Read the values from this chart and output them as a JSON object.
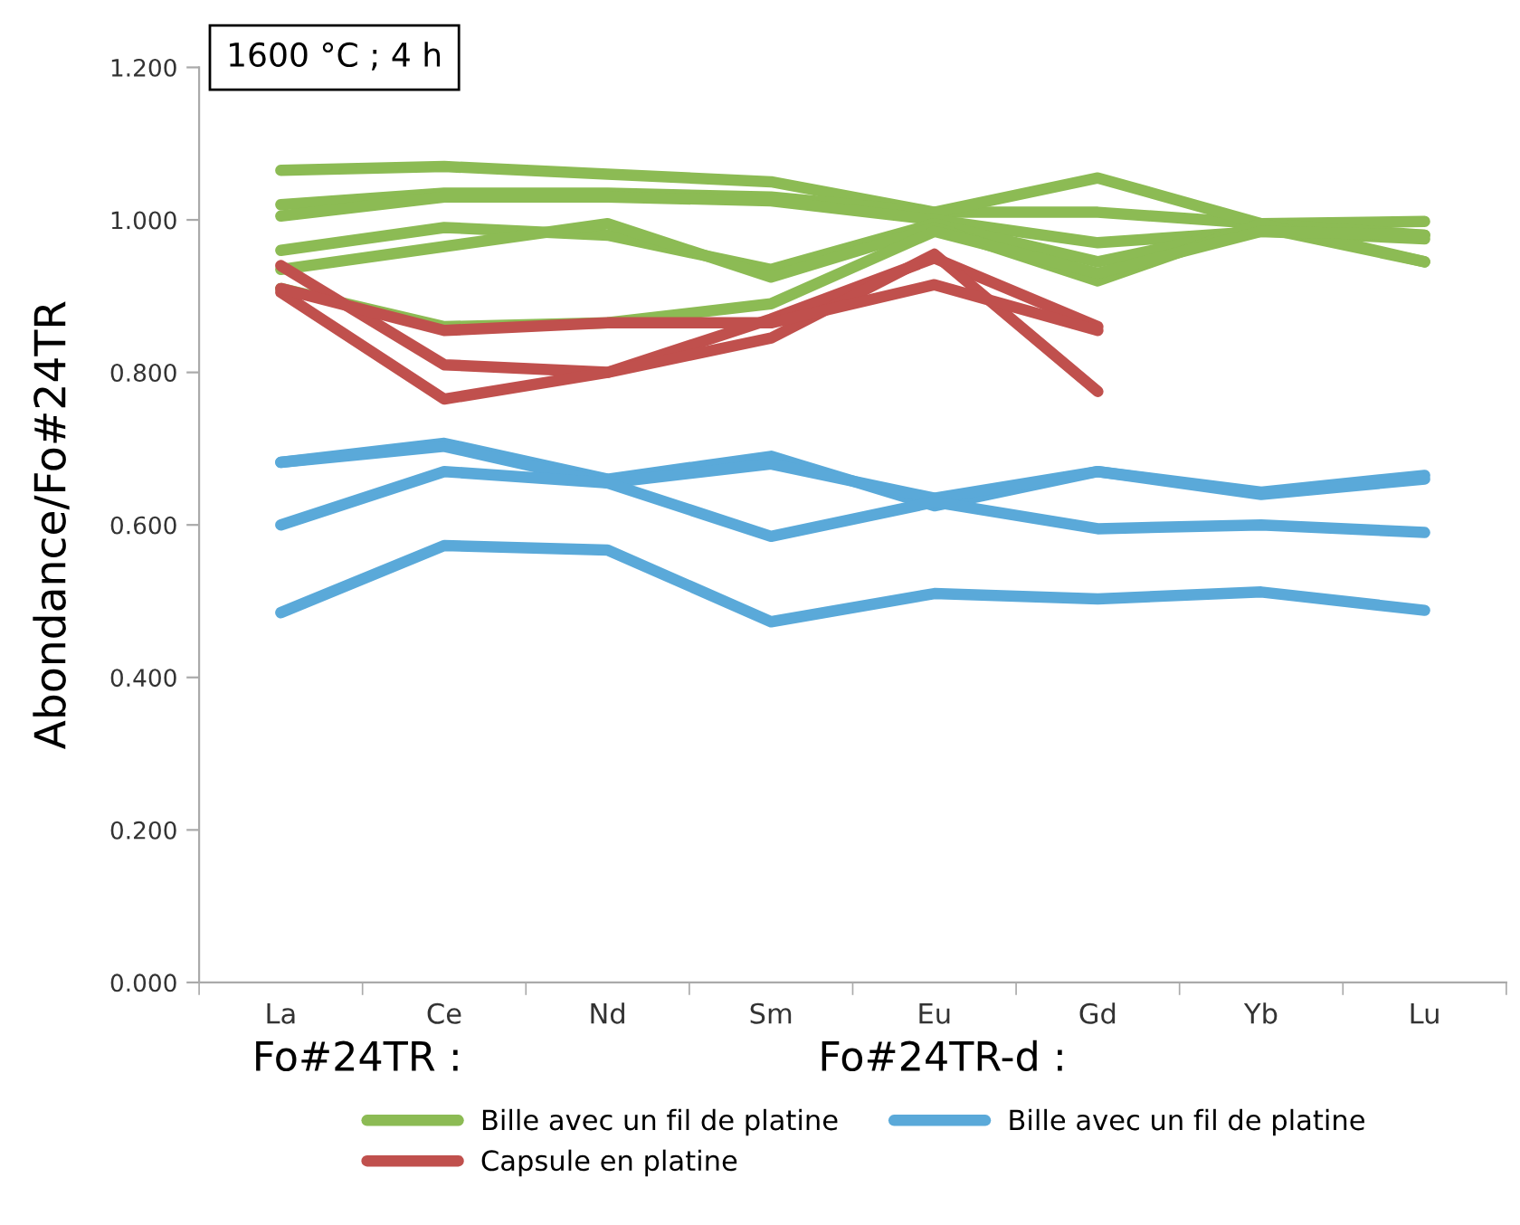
{
  "chart_data": {
    "type": "line",
    "categories": [
      "La",
      "Ce",
      "Nd",
      "Sm",
      "Eu",
      "Gd",
      "Yb",
      "Lu"
    ],
    "ylabel": "Abondance/Fo#24TR",
    "ylim": [
      0,
      1.2
    ],
    "yticks": [
      {
        "value": 0,
        "label": "0.000"
      },
      {
        "value": 0.2,
        "label": "0.200"
      },
      {
        "value": 0.4,
        "label": "0.400"
      },
      {
        "value": 0.6,
        "label": "0.600"
      },
      {
        "value": 0.8,
        "label": "0.800"
      },
      {
        "value": 1.0,
        "label": "1.000"
      },
      {
        "value": 1.2,
        "label": "1.200"
      }
    ],
    "grid": false,
    "legend": "bottom",
    "marker": "none",
    "line_style": "solid",
    "annotations": [
      "1600 °C ; 4 h",
      "Fo#24TR :",
      "Fo#24TR-d :"
    ],
    "series": [
      {
        "name": "Bille avec un fil de platine",
        "color": "#8cbb54",
        "values": [
          1.065,
          1.07,
          1.06,
          1.05,
          1.01,
          1.01,
          0.995,
          0.998
        ]
      },
      {
        "color": "#8cbb54",
        "values": [
          1.02,
          1.035,
          1.035,
          1.03,
          1.01,
          1.055,
          0.995,
          0.98
        ]
      },
      {
        "color": "#8cbb54",
        "values": [
          1.005,
          1.03,
          1.03,
          1.025,
          1.0,
          0.97,
          0.985,
          0.975
        ]
      },
      {
        "color": "#8cbb54",
        "values": [
          0.96,
          0.99,
          0.98,
          0.935,
          0.995,
          0.945,
          0.99,
          0.945
        ]
      },
      {
        "color": "#8cbb54",
        "values": [
          0.935,
          0.965,
          0.995,
          0.925,
          0.99,
          0.92,
          0.995,
          0.945
        ]
      },
      {
        "color": "#8cbb54",
        "values": [
          0.91,
          0.86,
          0.865,
          0.89,
          0.985,
          0.93,
          0.985,
          0.98
        ]
      },
      {
        "name": "Capsule en platine",
        "color": "#c0504d",
        "values": [
          0.94,
          0.81,
          0.8,
          0.87,
          0.95,
          0.86,
          null,
          null
        ]
      },
      {
        "color": "#c0504d",
        "values": [
          0.905,
          0.765,
          0.8,
          0.845,
          0.955,
          0.775,
          null,
          null
        ]
      },
      {
        "color": "#c0504d",
        "values": [
          0.91,
          0.855,
          0.865,
          0.865,
          0.915,
          0.855,
          null,
          null
        ]
      },
      {
        "name": "Bille avec un fil de platine",
        "color": "#5aa9d9",
        "values": [
          0.682,
          0.707,
          0.66,
          0.69,
          0.625,
          0.67,
          0.643,
          0.665
        ]
      },
      {
        "color": "#5aa9d9",
        "values": [
          0.682,
          0.703,
          0.655,
          0.68,
          0.635,
          0.67,
          0.64,
          0.66
        ]
      },
      {
        "color": "#5aa9d9",
        "values": [
          0.6,
          0.67,
          0.655,
          0.585,
          0.63,
          0.595,
          0.6,
          0.59
        ]
      },
      {
        "color": "#5aa9d9",
        "values": [
          0.485,
          0.573,
          0.567,
          0.473,
          0.51,
          0.503,
          0.512,
          0.488
        ]
      }
    ]
  }
}
